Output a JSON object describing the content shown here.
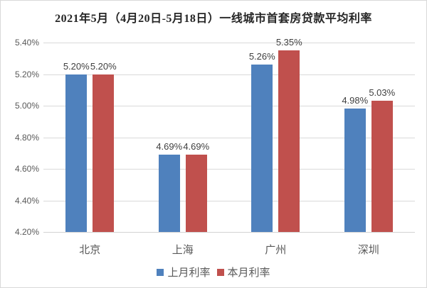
{
  "title": "2021年5月（4月20日-5月18日）一线城市首套房贷款平均利率",
  "legend": {
    "items": [
      {
        "label": "上月利率",
        "color": "#4F81BD"
      },
      {
        "label": "本月利率",
        "color": "#C0504D"
      }
    ]
  },
  "colors": {
    "prev_month_blue": "#4F81BD",
    "curr_month_red": "#C0504D",
    "gridline": "#D9D9D9",
    "tick_text": "#595959",
    "data_label_text": "#404040"
  },
  "chart_data": {
    "type": "bar",
    "title": "2021年5月（4月20日-5月18日）一线城市首套房贷款平均利率",
    "categories": [
      "北京",
      "上海",
      "广州",
      "深圳"
    ],
    "series": [
      {
        "name": "上月利率",
        "color": "#4F81BD",
        "values": [
          5.2,
          4.69,
          5.26,
          4.98
        ],
        "data_labels": [
          "5.20%",
          "4.69%",
          "5.26%",
          "4.98%"
        ]
      },
      {
        "name": "本月利率",
        "color": "#C0504D",
        "values": [
          5.2,
          4.69,
          5.35,
          5.03
        ],
        "data_labels": [
          "5.20%",
          "4.69%",
          "5.35%",
          "5.03%"
        ]
      }
    ],
    "xlabel": "",
    "ylabel": "",
    "ylim": [
      4.2,
      5.4
    ],
    "ytick_step": 0.2,
    "ytick_labels": [
      "4.20%",
      "4.40%",
      "4.60%",
      "4.80%",
      "5.00%",
      "5.20%",
      "5.40%"
    ],
    "grid": true,
    "legend_position": "bottom"
  }
}
